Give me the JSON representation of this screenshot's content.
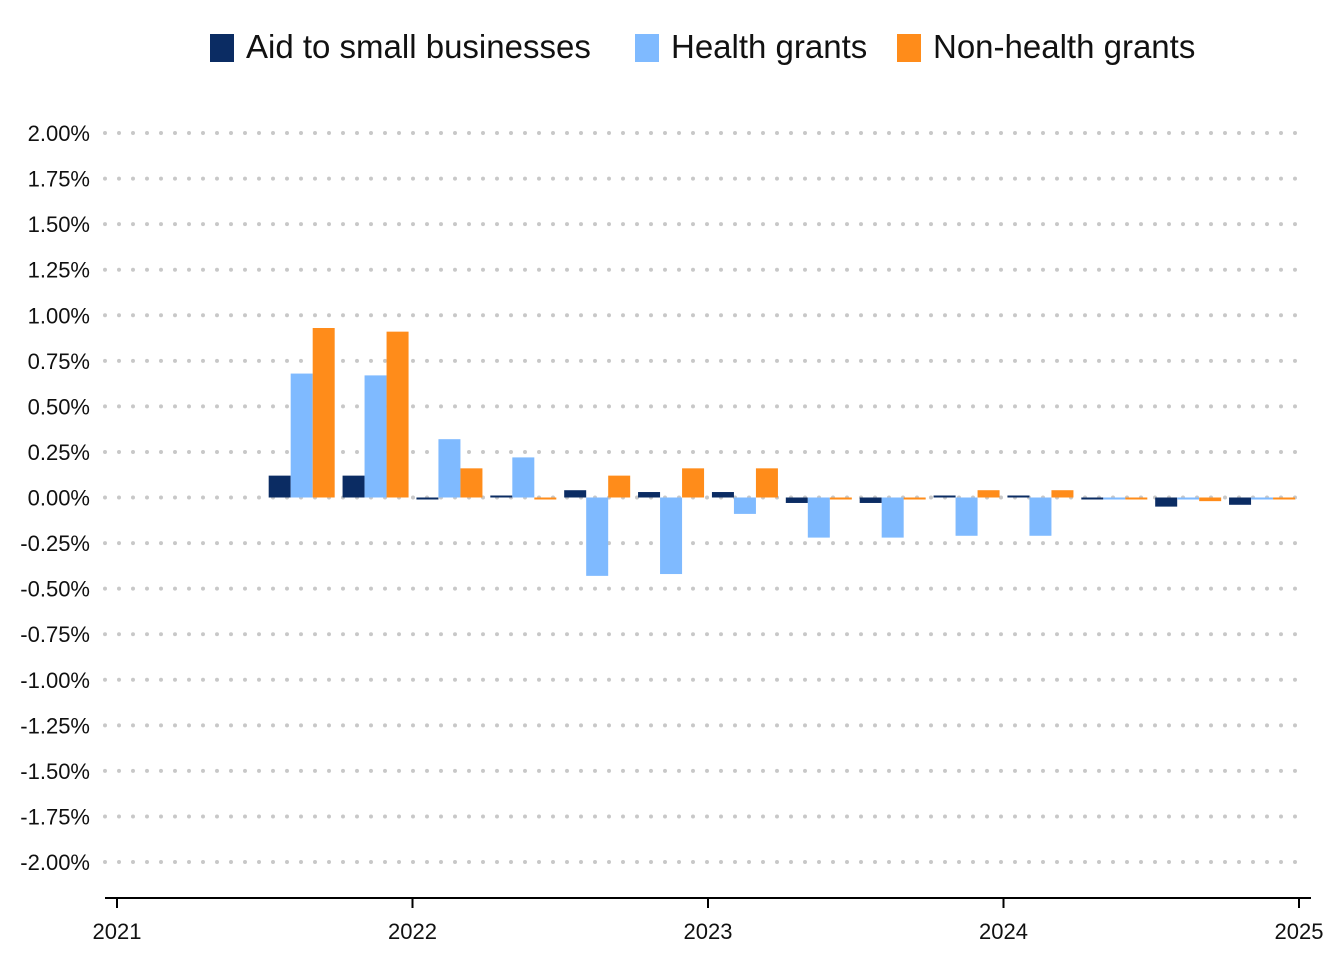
{
  "chart_data": {
    "type": "bar",
    "x": [
      "2021-Q3",
      "2021-Q4",
      "2022-Q1",
      "2022-Q2",
      "2022-Q3",
      "2022-Q4",
      "2023-Q1",
      "2023-Q2",
      "2023-Q3",
      "2023-Q4",
      "2024-Q1",
      "2024-Q2",
      "2024-Q3",
      "2024-Q4"
    ],
    "series": [
      {
        "name": "Aid to small businesses",
        "color": "#0b2c63",
        "values": [
          0.12,
          0.12,
          -0.01,
          0.01,
          0.04,
          0.03,
          0.03,
          -0.03,
          -0.03,
          0.005,
          0.005,
          -0.005,
          -0.05,
          -0.04
        ]
      },
      {
        "name": "Health grants",
        "color": "#7fbaff",
        "values": [
          0.68,
          0.67,
          0.32,
          0.22,
          -0.43,
          -0.42,
          -0.09,
          -0.22,
          -0.22,
          -0.21,
          -0.21,
          -0.01,
          -0.01,
          -0.01
        ]
      },
      {
        "name": "Non-health grants",
        "color": "#ff8c1a",
        "values": [
          0.93,
          0.91,
          0.16,
          -0.01,
          0.12,
          0.16,
          0.16,
          -0.01,
          -0.01,
          0.04,
          0.04,
          -0.005,
          -0.02,
          -0.01
        ]
      }
    ],
    "ylim": [
      -2.0,
      2.0
    ],
    "yticks": [
      "2.00%",
      "1.75%",
      "1.50%",
      "1.25%",
      "1.00%",
      "0.75%",
      "0.50%",
      "0.25%",
      "0.00%",
      "-0.25%",
      "-0.50%",
      "-0.75%",
      "-1.00%",
      "-1.25%",
      "-1.50%",
      "-1.75%",
      "-2.00%"
    ],
    "ytick_values": [
      2.0,
      1.75,
      1.5,
      1.25,
      1.0,
      0.75,
      0.5,
      0.25,
      0.0,
      -0.25,
      -0.5,
      -0.75,
      -1.0,
      -1.25,
      -1.5,
      -1.75,
      -2.0
    ],
    "xticks": [
      "2021",
      "2022",
      "2023",
      "2024",
      "2025"
    ],
    "xlim": [
      "2021",
      "2025"
    ],
    "grid": true,
    "grid_style": "dotted",
    "legend_position": "top"
  }
}
